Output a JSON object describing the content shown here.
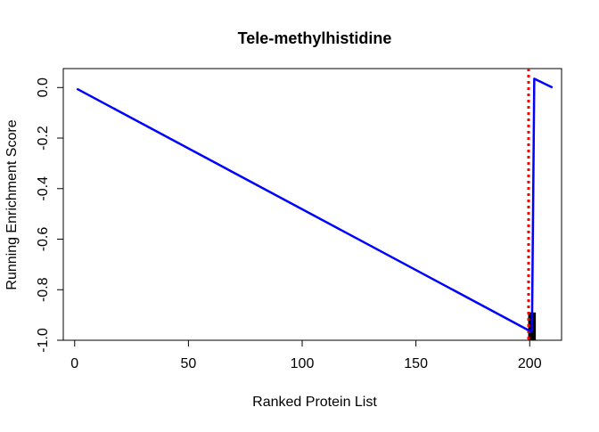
{
  "chart_data": {
    "type": "line",
    "title": "Tele-methylhistidine",
    "xlabel": "Ranked Protein List",
    "ylabel": "Running Enrichment Score",
    "xlim": [
      -5,
      214
    ],
    "ylim": [
      -1.0,
      0.075
    ],
    "x_ticks": [
      0,
      50,
      100,
      150,
      200
    ],
    "x_tick_labels": [
      "0",
      "50",
      "100",
      "150",
      "200"
    ],
    "y_ticks": [
      0.0,
      -0.2,
      -0.4,
      -0.6,
      -0.8,
      -1.0
    ],
    "y_tick_labels": [
      "0.0",
      "-0.2",
      "-0.4",
      "-0.6",
      "-0.8",
      "-1.0"
    ],
    "grid": false,
    "series": [
      {
        "color": "#0000ff",
        "x": [
          1,
          200,
          201,
          202,
          210
        ],
        "y": [
          -0.005,
          -0.963,
          -0.963,
          0.035,
          0.0
        ]
      }
    ],
    "hits": {
      "color": "#000000",
      "x": [
        200,
        201,
        202
      ],
      "y_range": [
        -1.0,
        -0.89
      ]
    },
    "vline": {
      "x": 199.5,
      "color": "#ff0000",
      "style": "dotted"
    }
  }
}
